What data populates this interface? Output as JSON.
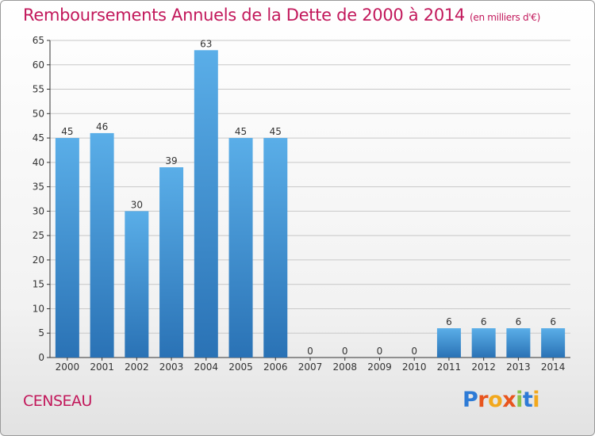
{
  "header": {
    "title": "Remboursements Annuels de la Dette de 2000 à 2014",
    "subtitle": "(en milliers d'€)"
  },
  "commune": "CENSEAU",
  "logo": {
    "text": "Proxiti"
  },
  "colors": {
    "bar_top": "#5aaee8",
    "bar_bottom": "#2a72b5",
    "title": "#c2185b"
  },
  "chart_data": {
    "type": "bar",
    "title": "Remboursements Annuels de la Dette de 2000 à 2014",
    "subtitle": "(en milliers d'€)",
    "xlabel": "",
    "ylabel": "",
    "categories": [
      "2000",
      "2001",
      "2002",
      "2003",
      "2004",
      "2005",
      "2006",
      "2007",
      "2008",
      "2009",
      "2010",
      "2011",
      "2012",
      "2013",
      "2014"
    ],
    "values": [
      45,
      46,
      30,
      39,
      63,
      45,
      45,
      0,
      0,
      0,
      0,
      6,
      6,
      6,
      6
    ],
    "ylim": [
      0,
      65
    ],
    "yticks": [
      0,
      5,
      10,
      15,
      20,
      25,
      30,
      35,
      40,
      45,
      50,
      55,
      60,
      65
    ],
    "grid": true,
    "legend": "none"
  }
}
